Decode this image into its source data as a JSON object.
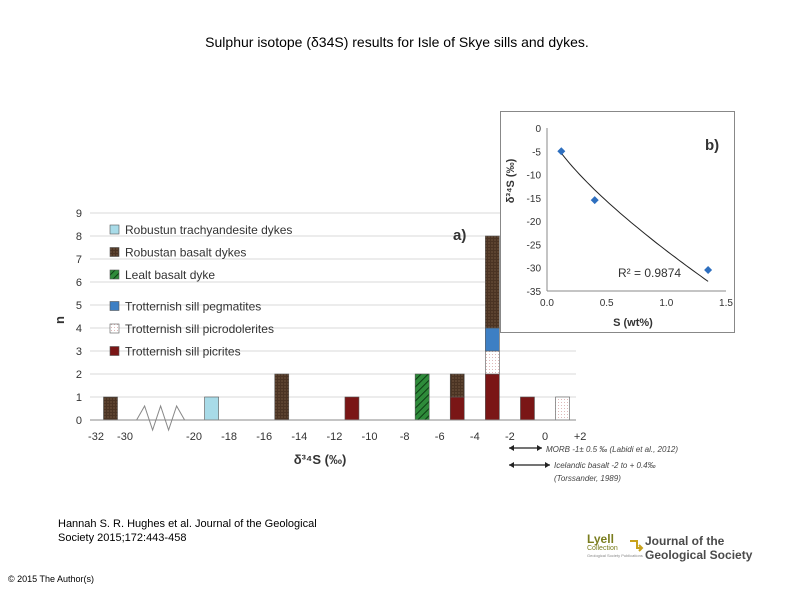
{
  "slide": {
    "title": "Sulphur isotope (δ34S) results for Isle of Skye sills and dykes.",
    "citation_line1": "Hannah S. R. Hughes et al. Journal of the Geological",
    "citation_line2": "Society 2015;172:443-458",
    "copyright": "© 2015 The Author(s)",
    "logo": {
      "lyell": "Lyell",
      "lyell_sub": "Collection",
      "lyell_tiny": "Geological Society Publications",
      "journal_line1": "Journal of the",
      "journal_line2": "Geological Society"
    }
  },
  "colors": {
    "trachyandesite": "#a8dbe8",
    "basalt_dykes": "#4a3323",
    "lealt": "#2e8b3a",
    "pegmatites": "#3d7fc4",
    "picrodolerites": "#ffffff",
    "picrites": "#7a1616",
    "gridline": "#d9d9d9",
    "curve_point": "#2e6fbf"
  },
  "chart_data": [
    {
      "type": "bar",
      "stacked": true,
      "panel_label": "a)",
      "xlabel": "δ³⁴S (‰)",
      "ylabel": "n",
      "ylim": [
        0,
        9
      ],
      "yticks": [
        "0",
        "1",
        "2",
        "3",
        "4",
        "5",
        "6",
        "7",
        "8",
        "9"
      ],
      "xticks": [
        "-32",
        "-30",
        "-20",
        "-18",
        "-16",
        "-14",
        "-12",
        "-10",
        "-8",
        "-6",
        "-4",
        "-2",
        "0",
        "+2"
      ],
      "axis_break": "between -30 and -20",
      "grid": true,
      "legend_position": "top-left",
      "series": [
        {
          "name": "Robustun trachyandesite dykes",
          "key": "trachyandesite"
        },
        {
          "name": "Robustan basalt dykes",
          "key": "basalt_dykes"
        },
        {
          "name": "Lealt basalt dyke",
          "key": "lealt"
        },
        {
          "name": "Trotternish sill pegmatites",
          "key": "pegmatites"
        },
        {
          "name": "Trotternish sill picrodolerites",
          "key": "picrodolerites"
        },
        {
          "name": "Trotternish sill picrites",
          "key": "picrites"
        }
      ],
      "bars": [
        {
          "x": -31,
          "stack": [
            {
              "key": "basalt_dykes",
              "n": 1
            }
          ]
        },
        {
          "x": -19,
          "stack": [
            {
              "key": "trachyandesite",
              "n": 1
            }
          ]
        },
        {
          "x": -15,
          "stack": [
            {
              "key": "basalt_dykes",
              "n": 2
            }
          ]
        },
        {
          "x": -11,
          "stack": [
            {
              "key": "picrites",
              "n": 1
            }
          ]
        },
        {
          "x": -7,
          "stack": [
            {
              "key": "lealt",
              "n": 2
            }
          ]
        },
        {
          "x": -5,
          "stack": [
            {
              "key": "picrites",
              "n": 1
            },
            {
              "key": "basalt_dykes",
              "n": 1
            }
          ]
        },
        {
          "x": -3,
          "stack": [
            {
              "key": "picrites",
              "n": 2
            },
            {
              "key": "picrodolerites",
              "n": 1
            },
            {
              "key": "pegmatites",
              "n": 1
            },
            {
              "key": "basalt_dykes",
              "n": 4
            }
          ]
        },
        {
          "x": -1,
          "stack": [
            {
              "key": "picrites",
              "n": 1
            }
          ]
        },
        {
          "x": 1,
          "stack": [
            {
              "key": "picrodolerites",
              "n": 1
            }
          ]
        }
      ],
      "annotations": [
        {
          "label": "MORB -1± 0.5 ‰ (Labidi et al., 2012)",
          "range": [
            -1.5,
            -0.5
          ]
        },
        {
          "label": "Icelandic basalt -2 to + 0.4‰",
          "range": [
            -2,
            0.4
          ]
        },
        {
          "label": "(Torssander, 1989)"
        }
      ]
    },
    {
      "type": "scatter",
      "panel_label": "b)",
      "xlabel": "S (wt%)",
      "ylabel": "δ³⁴S (‰)",
      "xlim": [
        0,
        1.5
      ],
      "ylim": [
        -35,
        0
      ],
      "xticks": [
        "0.0",
        "0.5",
        "1.0",
        "1.5"
      ],
      "yticks": [
        "0",
        "-5",
        "-10",
        "-15",
        "-20",
        "-25",
        "-30",
        "-35"
      ],
      "points": [
        {
          "x": 0.12,
          "y": -5
        },
        {
          "x": 0.4,
          "y": -15.5
        },
        {
          "x": 1.35,
          "y": -30.5
        }
      ],
      "trendline": "power fit",
      "r_squared": "R² = 0.9874"
    }
  ]
}
